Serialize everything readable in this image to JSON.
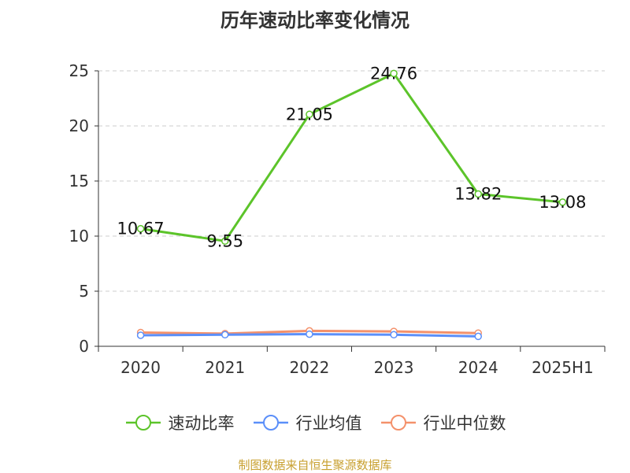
{
  "chart_data": {
    "type": "line",
    "title": "历年速动比率变化情况",
    "categories": [
      "2020",
      "2021",
      "2022",
      "2023",
      "2024",
      "2025H1"
    ],
    "ylim": [
      0,
      25
    ],
    "yticks": [
      0,
      5,
      10,
      15,
      20,
      25
    ],
    "grid": true,
    "legend_position": "bottom",
    "series": [
      {
        "name": "速动比率",
        "color": "#5cc42a",
        "values": [
          10.67,
          9.55,
          21.05,
          24.76,
          13.82,
          13.08
        ],
        "labels": [
          "10.67",
          "9.55",
          "21.05",
          "24.76",
          "13.82",
          "13.08"
        ]
      },
      {
        "name": "行业均值",
        "color": "#5b8ff9",
        "values": [
          1.0,
          1.05,
          1.1,
          1.05,
          0.9,
          null
        ]
      },
      {
        "name": "行业中位数",
        "color": "#f4916b",
        "values": [
          1.25,
          1.15,
          1.4,
          1.35,
          1.2,
          null
        ]
      }
    ]
  },
  "footer": {
    "source": "制图数据来自恒生聚源数据库"
  }
}
